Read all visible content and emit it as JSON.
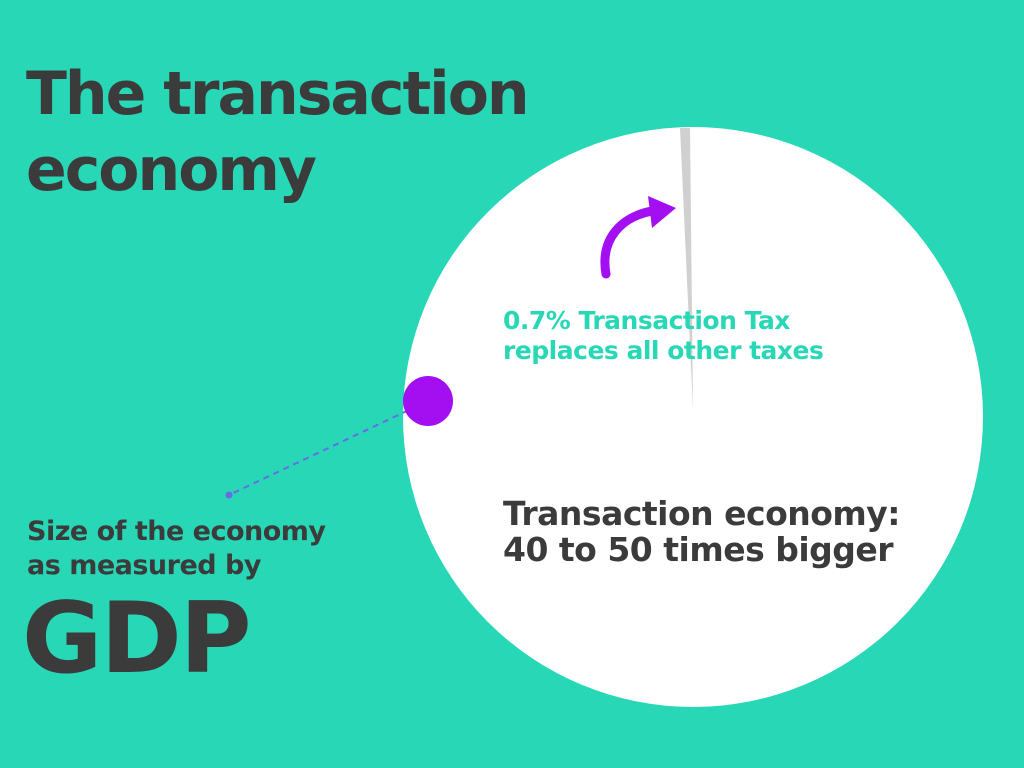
{
  "title_lines": [
    "The transaction",
    "economy"
  ],
  "tax_note_lines": [
    "0.7% Transaction Tax",
    "replaces all other taxes"
  ],
  "economy_note_lines": [
    "Transaction economy:",
    "40 to 50 times bigger"
  ],
  "gdp_note_lines": [
    "Size of the economy",
    "as measured by"
  ],
  "gdp_label": "GDP"
}
